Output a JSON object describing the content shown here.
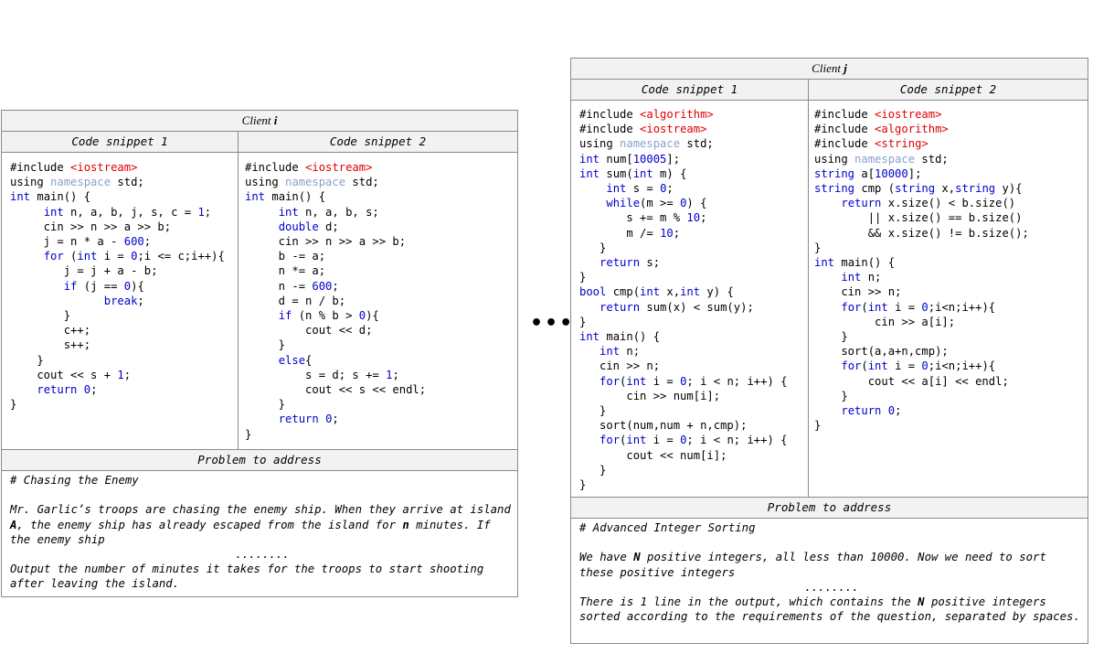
{
  "client_i": {
    "title_prefix": "Client",
    "title_var": "i",
    "col1": "Code snippet 1",
    "col2": "Code snippet 2",
    "problem_header": "Problem to address",
    "snippet1": [
      "#include <iostream>",
      "using namespace std;",
      "int main() {",
      "     int n, a, b, j, s, c = 1;",
      "     cin >> n >> a >> b;",
      "     j = n * a - 600;",
      "     for (int i = 0;i <= c;i++){",
      "        j = j + a - b;",
      "        if (j == 0){",
      "              break;",
      "        }",
      "        c++;",
      "        s++;",
      "    }",
      "    cout << s + 1;",
      "    return 0;",
      "}"
    ],
    "snippet2": [
      "#include <iostream>",
      "using namespace std;",
      "int main() {",
      "     int n, a, b, s;",
      "     double d;",
      "     cin >> n >> a >> b;",
      "     b -= a;",
      "     n *= a;",
      "     n -= 600;",
      "     d = n / b;",
      "     if (n % b > 0){",
      "         cout << d;",
      "     }",
      "     else{",
      "         s = d; s += 1;",
      "         cout << s << endl;",
      "     }",
      "     return 0;",
      "}"
    ],
    "problem_title": "# Chasing the Enemy",
    "problem_p1_a": "Mr. Garlic’s troops are chasing the enemy ship. When they arrive at island ",
    "problem_p1_b": "A",
    "problem_p1_c": ", the enemy ship has already escaped from the island for ",
    "problem_p1_d": "n",
    "problem_p1_e": " minutes. If the enemy ship",
    "dots": "........",
    "problem_p2": "Output the number of minutes it takes for the troops to start shooting after leaving the island."
  },
  "ellipsis": "•••",
  "client_j": {
    "title_prefix": "Client",
    "title_var": "j",
    "col1": "Code snippet 1",
    "col2": "Code snippet 2",
    "problem_header": "Problem to address",
    "snippet1": [
      "#include <algorithm>",
      "#include <iostream>",
      "using namespace std;",
      "int num[10005];",
      "int sum(int m) {",
      "    int s = 0;",
      "    while(m >= 0) {",
      "       s += m % 10;",
      "       m /= 10;",
      "   }",
      "   return s;",
      "}",
      "bool cmp(int x,int y) {",
      "   return sum(x) < sum(y);",
      "}",
      "int main() {",
      "   int n;",
      "   cin >> n;",
      "   for(int i = 0; i < n; i++) {",
      "       cin >> num[i];",
      "   }",
      "   sort(num,num + n,cmp);",
      "   for(int i = 0; i < n; i++) {",
      "       cout << num[i];",
      "   }",
      "}"
    ],
    "snippet2": [
      "#include <iostream>",
      "#include <algorithm>",
      "#include <string>",
      "using namespace std;",
      "string a[10000];",
      "string cmp (string x,string y){",
      "    return x.size() < b.size()",
      "        || x.size() == b.size()",
      "        && x.size() != b.size();",
      "}",
      "int main() {",
      "    int n;",
      "    cin >> n;",
      "    for(int i = 0;i<n;i++){",
      "         cin >> a[i];",
      "    }",
      "    sort(a,a+n,cmp);",
      "    for(int i = 0;i<n;i++){",
      "        cout << a[i] << endl;",
      "    }",
      "    return 0;",
      "}"
    ],
    "problem_title": "# Advanced Integer Sorting",
    "problem_p1_a": "We have ",
    "problem_p1_b": "N",
    "problem_p1_c": " positive integers, all less than 10000. Now we need to sort these positive integers",
    "dots": "........",
    "problem_p2_a": "There is 1 line in the output, which contains the ",
    "problem_p2_b": "N",
    "problem_p2_c": " positive integers sorted according to the requirements of the question, separated by spaces."
  }
}
